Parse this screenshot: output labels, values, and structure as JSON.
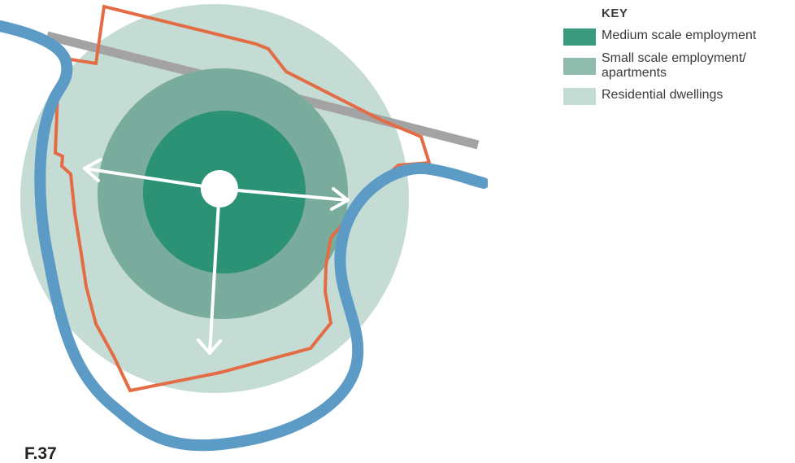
{
  "figure_label": "F.37",
  "key": {
    "title": "KEY",
    "items": [
      {
        "label": "Medium scale employment",
        "color": "#3a9a7e"
      },
      {
        "label": "Small scale employment/ apartments",
        "color": "#8fbcac"
      },
      {
        "label": "Residential dwellings",
        "color": "#c5dcd5"
      }
    ]
  },
  "colors": {
    "river": "#5b9bc6",
    "boundary": "#e46c45",
    "road": "#a3a3a3",
    "outer_zone": "#c5dcd5",
    "middle_zone": "#7aac9d",
    "inner_zone": "#2b9275",
    "arrows": "#ffffff"
  }
}
